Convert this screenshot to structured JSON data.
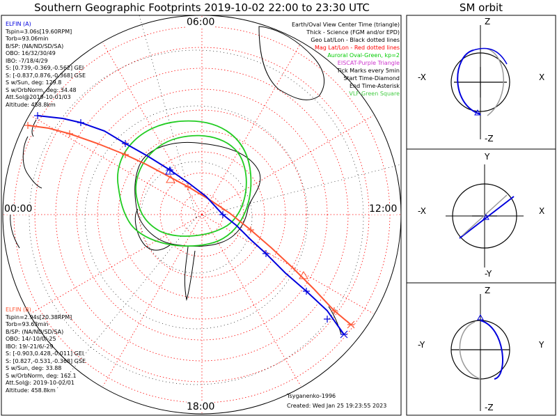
{
  "title": "Southern Geographic Footprints 2019-10-02 22:00 to 23:30 UTC",
  "side_title": "SM orbit",
  "clock_labels": {
    "top": "06:00",
    "left": "00:00",
    "right": "12:00",
    "bottom": "18:00"
  },
  "elfin_a": {
    "name": "ELFIN (A)",
    "lines": [
      "Tspin=3.06s[19.60RPM]",
      "Torb=93.06min",
      "B/SP: (NA/ND/SD/SA)",
      "OBO: 16/32/30/49",
      "IBO: -7/18/4/29",
      "S: [0.739,-0.369,-0.562] GEI",
      "S: [-0.837,0.876,-0.368] GSE",
      "S w/Sun, deg: 129.8",
      "S w/OrbNorm, deg: 34.48",
      "Att.Sol@2019-10-01/03",
      "Altitude: 458.8km"
    ]
  },
  "elfin_b": {
    "name": "ELFIN (B)",
    "lines": [
      "Tspin=2.94s[20.38RPM]",
      "Torb=93.63min",
      "B/SP: (NA/ND/SD/SA)",
      "OBO: 14/-10/0/-25",
      "IBO: 19/-21/6/-29",
      "S: [-0.903,0.428,-0.011] GEI",
      "S: [0.827,-0.531,-0.368] GSE",
      "S w/Sun, deg: 33.88",
      "S w/OrbNorm, deg: 162.1",
      "Att.Sol@: 2019-10-02/01",
      "Altitude: 458.8km"
    ]
  },
  "legend": [
    {
      "text": "Earth/Oval View Center Time (triangle)",
      "color": "#000000"
    },
    {
      "text": "Thick - Science (FGM and/or EPD)",
      "color": "#000000"
    },
    {
      "text": "Geo Lat/Lon - Black dotted lines",
      "color": "#000000"
    },
    {
      "text": "Mag Lat/Lon - Red dotted lines",
      "color": "#ff0000"
    },
    {
      "text": "Auroral Oval-Green, kp=2",
      "color": "#00cc00"
    },
    {
      "text": "EISCAT-Purple Triangle",
      "color": "#cc33cc"
    },
    {
      "text": "Tick Marks every 5min",
      "color": "#000000"
    },
    {
      "text": "Start Time-Diamond",
      "color": "#000000"
    },
    {
      "text": "End Time-Asterisk",
      "color": "#000000"
    },
    {
      "text": "VLF-Green Square",
      "color": "#44cc44"
    }
  ],
  "credit": "Tsyganenko-1996",
  "created": "Created: Wed Jan 25 19:23:55 2023",
  "panels": [
    {
      "top": "Z",
      "bottom": "-Z",
      "left": "-X",
      "right": "X"
    },
    {
      "top": "Y",
      "bottom": "-Y",
      "left": "-X",
      "right": "X"
    },
    {
      "top": "Z",
      "bottom": "-Z",
      "left": "-Y",
      "right": "Y"
    }
  ],
  "colors": {
    "elfin_a": "#0000dd",
    "elfin_b": "#ff5533",
    "oval": "#22cc22",
    "mag_grid": "#ff0000",
    "geo_grid": "#000000"
  }
}
